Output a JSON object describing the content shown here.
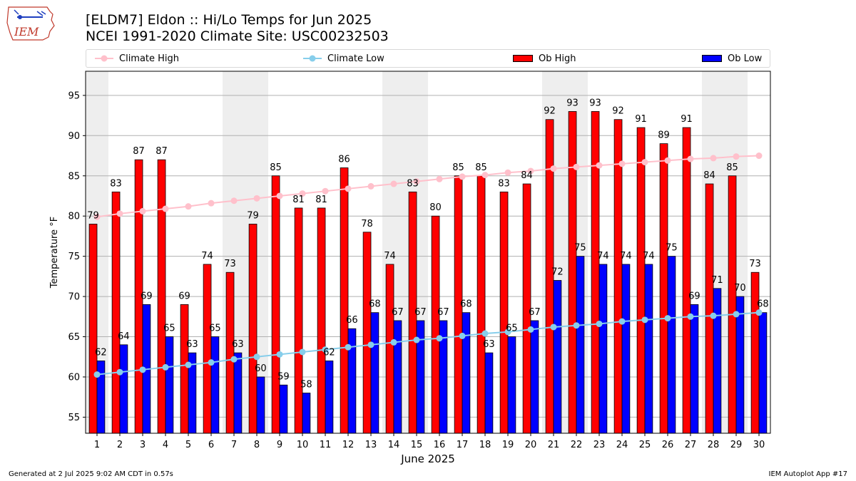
{
  "header": {
    "title_line1": "[ELDM7] Eldon :: Hi/Lo Temps for Jun 2025",
    "title_line2": "NCEI 1991-2020 Climate Site: USC00232503",
    "logo_text": "IEM"
  },
  "footer": {
    "left": "Generated at 2 Jul 2025 9:02 AM CDT in 0.57s",
    "right": "IEM Autoplot App #17"
  },
  "colors": {
    "climate_high": "#ffc0cb",
    "climate_low": "#87ceeb",
    "ob_high": "#ff0000",
    "ob_low": "#0000ff",
    "weekend_shade": "#eeeeee",
    "grid": "#b0b0b0"
  },
  "chart_data": {
    "type": "bar",
    "xlabel": "June 2025",
    "ylabel": "Temperature °F",
    "ylim": [
      53,
      98
    ],
    "yticks": [
      55,
      60,
      65,
      70,
      75,
      80,
      85,
      90,
      95
    ],
    "grid": "horizontal",
    "legend_position": "top",
    "categories": [
      "1",
      "2",
      "3",
      "4",
      "5",
      "6",
      "7",
      "8",
      "9",
      "10",
      "11",
      "12",
      "13",
      "14",
      "15",
      "16",
      "17",
      "18",
      "19",
      "20",
      "21",
      "22",
      "23",
      "24",
      "25",
      "26",
      "27",
      "28",
      "29",
      "30"
    ],
    "shaded_days": [
      1,
      7,
      8,
      14,
      15,
      21,
      22,
      28,
      29
    ],
    "series": [
      {
        "name": "Climate High",
        "kind": "line",
        "values": [
          79.9,
          80.3,
          80.6,
          80.9,
          81.2,
          81.6,
          81.9,
          82.2,
          82.5,
          82.8,
          83.1,
          83.4,
          83.7,
          84.0,
          84.3,
          84.6,
          84.9,
          85.1,
          85.4,
          85.6,
          85.9,
          86.1,
          86.3,
          86.5,
          86.7,
          86.9,
          87.1,
          87.2,
          87.4,
          87.5
        ]
      },
      {
        "name": "Climate Low",
        "kind": "line",
        "values": [
          60.3,
          60.6,
          60.9,
          61.2,
          61.5,
          61.8,
          62.2,
          62.5,
          62.8,
          63.1,
          63.4,
          63.7,
          64.0,
          64.3,
          64.6,
          64.8,
          65.1,
          65.4,
          65.6,
          65.9,
          66.2,
          66.4,
          66.6,
          66.9,
          67.1,
          67.3,
          67.5,
          67.6,
          67.8,
          68.0
        ]
      },
      {
        "name": "Ob High",
        "kind": "bar",
        "values": [
          79,
          83,
          87,
          87,
          69,
          74,
          73,
          79,
          85,
          81,
          81,
          86,
          78,
          74,
          83,
          80,
          85,
          85,
          83,
          84,
          92,
          93,
          93,
          92,
          91,
          89,
          91,
          84,
          85,
          73
        ]
      },
      {
        "name": "Ob Low",
        "kind": "bar",
        "values": [
          62,
          64,
          69,
          65,
          63,
          65,
          63,
          60,
          59,
          58,
          62,
          66,
          68,
          67,
          67,
          67,
          68,
          63,
          65,
          67,
          72,
          75,
          74,
          74,
          74,
          75,
          69,
          71,
          70,
          68
        ]
      }
    ]
  }
}
